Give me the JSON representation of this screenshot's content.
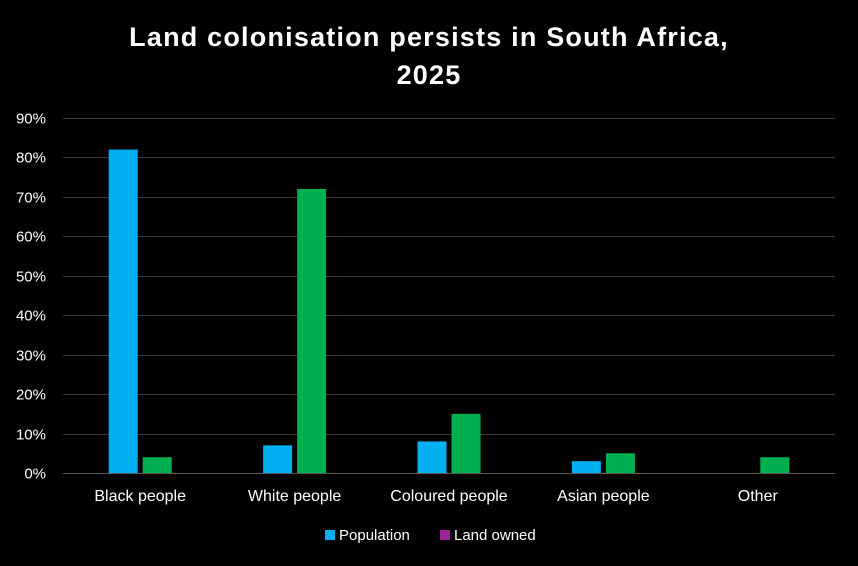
{
  "chart_data": {
    "type": "bar",
    "title_line1": "Land colonisation persists in South Africa,",
    "title_line2": "2025",
    "categories": [
      "Black people",
      "White people",
      "Coloured people",
      "Asian people",
      "Other"
    ],
    "series": [
      {
        "name": "Population",
        "values": [
          82,
          7,
          8,
          3,
          0
        ],
        "color": "#00b0f0"
      },
      {
        "name": "Land owned",
        "values": [
          4,
          72,
          15,
          5,
          4
        ],
        "color": "#00b050",
        "legend_swatch_color": "#a0229a"
      }
    ],
    "y_ticks": [
      "0%",
      "10%",
      "20%",
      "30%",
      "40%",
      "50%",
      "60%",
      "70%",
      "80%",
      "90%"
    ],
    "ylim": [
      0,
      90
    ],
    "grid": true,
    "legend_position": "bottom",
    "background": "#000000",
    "grid_color": "#3a3a3a"
  }
}
